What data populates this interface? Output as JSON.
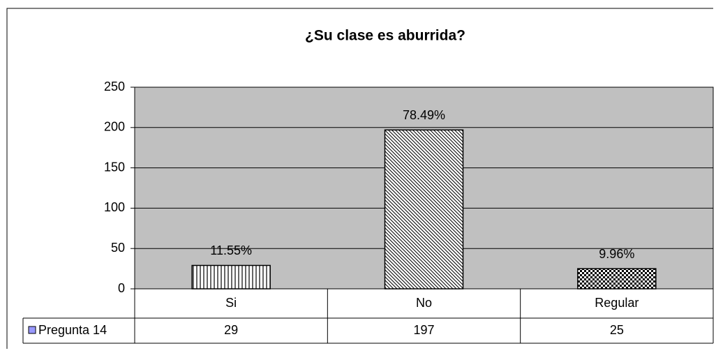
{
  "chart_data": {
    "type": "bar",
    "title": "¿Su clase es aburrida?",
    "categories": [
      "Si",
      "No",
      "Regular"
    ],
    "series": [
      {
        "name": "Pregunta 14",
        "color": "#9999ff",
        "values": [
          29,
          197,
          25
        ]
      }
    ],
    "annotations": [
      "11.55%",
      "78.49%",
      "9.96%"
    ],
    "ylim": [
      0,
      250
    ],
    "yticks": [
      0,
      50,
      100,
      150,
      200,
      250
    ],
    "grid": true
  }
}
